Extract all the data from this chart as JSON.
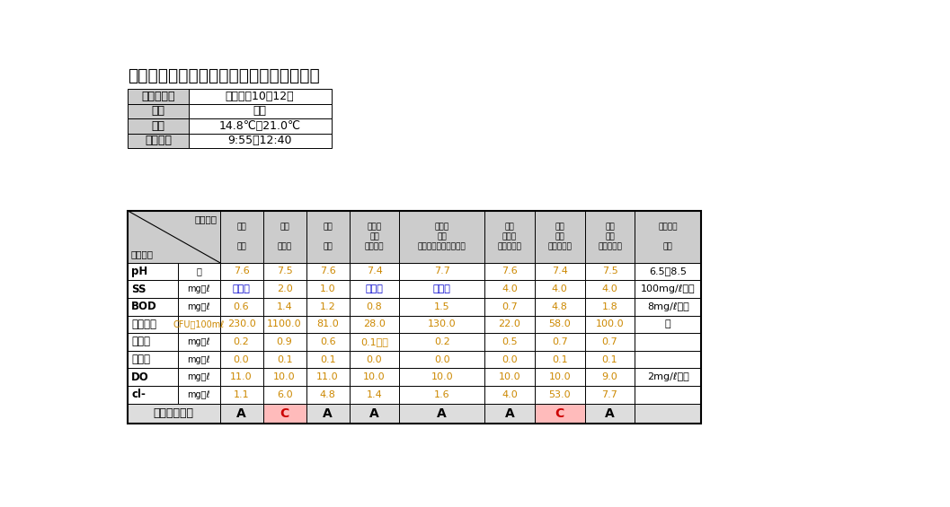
{
  "title": "令和４年度　〈秋〉の河川水質検査の結果",
  "info_rows": [
    [
      "採水年月日",
      "令和４年10月12日"
    ],
    [
      "天候",
      "晴れ"
    ],
    [
      "気温",
      "14.8℃～21.0℃"
    ],
    [
      "採水時間",
      "9:55～12:40"
    ]
  ],
  "header_texts": [
    "樋川\n\n樋千",
    "樋川\n\n小見橋",
    "樋川\n\n新橋",
    "馬曲川\n上流\n（馬曲）",
    "馬曲川\n下流\n（グリーンセンター）",
    "大川\n最上流\n（西小路）",
    "大川\n上流\n（西小路）",
    "大川\n下流\n（市之割）",
    "農業用水\n\n基準"
  ],
  "data_rows": [
    {
      "label": "pH",
      "unit": "－",
      "values": [
        "7.6",
        "7.5",
        "7.6",
        "7.4",
        "7.7",
        "7.6",
        "7.4",
        "7.5",
        "6.5～8.5"
      ],
      "vc": [
        "#cc8800",
        "#cc8800",
        "#cc8800",
        "#cc8800",
        "#cc8800",
        "#cc8800",
        "#cc8800",
        "#cc8800",
        "#000000"
      ]
    },
    {
      "label": "SS",
      "unit": "mg／ℓ",
      "values": [
        "１未満",
        "2.0",
        "1.0",
        "１未満",
        "１未満",
        "4.0",
        "4.0",
        "4.0",
        "100mg/ℓ以下"
      ],
      "vc": [
        "#0000cc",
        "#cc8800",
        "#cc8800",
        "#0000cc",
        "#0000cc",
        "#cc8800",
        "#cc8800",
        "#cc8800",
        "#000000"
      ]
    },
    {
      "label": "BOD",
      "unit": "mg／ℓ",
      "values": [
        "0.6",
        "1.4",
        "1.2",
        "0.8",
        "1.5",
        "0.7",
        "4.8",
        "1.8",
        "8mg/ℓ以下"
      ],
      "vc": [
        "#cc8800",
        "#cc8800",
        "#cc8800",
        "#cc8800",
        "#cc8800",
        "#cc8800",
        "#cc8800",
        "#cc8800",
        "#000000"
      ]
    },
    {
      "label": "大腸菌数",
      "unit": "CFU／100mℓ",
      "values": [
        "230.0",
        "1100.0",
        "81.0",
        "28.0",
        "130.0",
        "22.0",
        "58.0",
        "100.0",
        "－"
      ],
      "vc": [
        "#cc8800",
        "#cc8800",
        "#cc8800",
        "#cc8800",
        "#cc8800",
        "#cc8800",
        "#cc8800",
        "#cc8800",
        "#000000"
      ]
    },
    {
      "label": "全窒素",
      "unit": "mg／ℓ",
      "values": [
        "0.2",
        "0.9",
        "0.6",
        "0.1未満",
        "0.2",
        "0.5",
        "0.7",
        "0.7",
        ""
      ],
      "vc": [
        "#cc8800",
        "#cc8800",
        "#cc8800",
        "#cc8800",
        "#cc8800",
        "#cc8800",
        "#cc8800",
        "#cc8800",
        "#000000"
      ]
    },
    {
      "label": "全りん",
      "unit": "mg／ℓ",
      "values": [
        "0.0",
        "0.1",
        "0.1",
        "0.0",
        "0.0",
        "0.0",
        "0.1",
        "0.1",
        ""
      ],
      "vc": [
        "#cc8800",
        "#cc8800",
        "#cc8800",
        "#cc8800",
        "#cc8800",
        "#cc8800",
        "#cc8800",
        "#cc8800",
        "#000000"
      ]
    },
    {
      "label": "DO",
      "unit": "mg／ℓ",
      "values": [
        "11.0",
        "10.0",
        "11.0",
        "10.0",
        "10.0",
        "10.0",
        "10.0",
        "9.0",
        "2mg/ℓ以上"
      ],
      "vc": [
        "#cc8800",
        "#cc8800",
        "#cc8800",
        "#cc8800",
        "#cc8800",
        "#cc8800",
        "#cc8800",
        "#cc8800",
        "#000000"
      ]
    },
    {
      "label": "cl-",
      "unit": "mg／ℓ",
      "values": [
        "1.1",
        "6.0",
        "4.8",
        "1.4",
        "1.6",
        "4.0",
        "53.0",
        "7.7",
        ""
      ],
      "vc": [
        "#cc8800",
        "#cc8800",
        "#cc8800",
        "#cc8800",
        "#cc8800",
        "#cc8800",
        "#cc8800",
        "#cc8800",
        "#000000"
      ]
    }
  ],
  "comp_values": [
    "A",
    "C",
    "A",
    "A",
    "A",
    "A",
    "C",
    "A",
    ""
  ],
  "comp_highlight": [
    false,
    true,
    false,
    false,
    false,
    false,
    true,
    false,
    false
  ],
  "col_widths": [
    0.75,
    0.62,
    0.62,
    0.62,
    0.72,
    1.22,
    0.72,
    0.72,
    0.72,
    0.95
  ],
  "header_bg": "#cccccc",
  "data_label_bg": "#dddddd",
  "comp_bg": "#dddddd",
  "highlight_bg": "#ffbbbb",
  "white": "#ffffff",
  "border": "#000000",
  "title_color": "#000000",
  "info_label_bg": "#cccccc"
}
